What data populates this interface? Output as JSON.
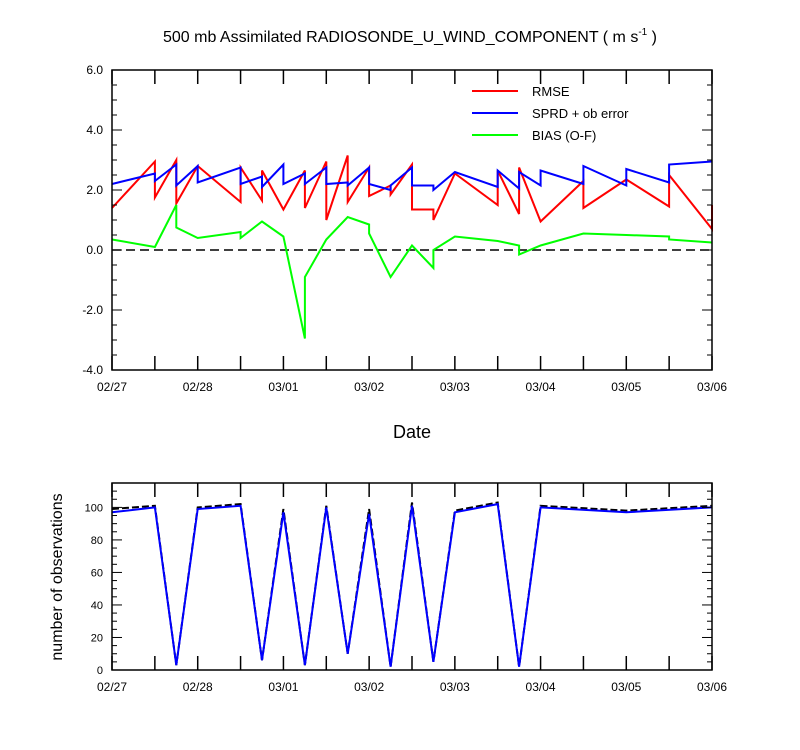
{
  "chart_data": [
    {
      "type": "line",
      "title": "500 mb Assimilated RADIOSONDE_U_WIND_COMPONENT ( m s",
      "title_sup": "-1",
      "title_end": " )",
      "xlabel": "Date",
      "ylabel": "",
      "xlim": [
        0,
        7
      ],
      "ylim": [
        -4,
        6
      ],
      "x_ticks": [
        0,
        1,
        2,
        3,
        4,
        5,
        6,
        7
      ],
      "x_tick_labels": [
        "02/27",
        "02/28",
        "03/01",
        "03/02",
        "03/03",
        "03/04",
        "03/05",
        "03/06"
      ],
      "y_ticks": [
        -4,
        -2,
        0,
        2,
        4,
        6
      ],
      "y_tick_labels": [
        "-4.0",
        "-2.0",
        "0.0",
        "2.0",
        "4.0",
        "6.0"
      ],
      "grid": false,
      "legend_position": "top-right",
      "zero_line": {
        "y": 0,
        "style": "dashed",
        "color": "#000000"
      },
      "series": [
        {
          "name": "RMSE",
          "color": "#ff0000",
          "x": [
            0,
            0.5,
            0.5,
            0.75,
            0.75,
            1,
            1.5,
            1.5,
            1.75,
            1.75,
            2,
            2.25,
            2.25,
            2.5,
            2.5,
            2.75,
            2.75,
            3,
            3,
            3.25,
            3.25,
            3.5,
            3.5,
            3.75,
            3.75,
            4,
            4.5,
            4.5,
            4.75,
            4.75,
            5,
            5.5,
            5.5,
            6,
            6.5,
            6.5,
            7,
            7
          ],
          "y": [
            1.4,
            2.95,
            1.75,
            3.0,
            1.55,
            2.8,
            1.6,
            2.75,
            1.65,
            2.65,
            1.35,
            2.65,
            1.4,
            2.95,
            1.0,
            3.15,
            1.6,
            2.75,
            1.8,
            2.15,
            1.85,
            2.85,
            1.35,
            1.35,
            1.0,
            2.55,
            1.5,
            2.65,
            1.2,
            2.75,
            0.95,
            2.3,
            1.4,
            2.35,
            1.45,
            2.5,
            0.7,
            1.5
          ]
        },
        {
          "name": "SPRD + ob error",
          "color": "#0000ff",
          "x": [
            0,
            0.5,
            0.5,
            0.75,
            0.75,
            1,
            1,
            1.5,
            1.5,
            1.75,
            1.75,
            2,
            2,
            2.25,
            2.25,
            2.5,
            2.5,
            2.75,
            2.75,
            3,
            3,
            3.25,
            3.25,
            3.5,
            3.5,
            3.75,
            3.75,
            4,
            4.5,
            4.5,
            4.75,
            4.75,
            5,
            5,
            5.5,
            5.5,
            6,
            6,
            6.5,
            6.5,
            7
          ],
          "y": [
            2.2,
            2.55,
            2.3,
            2.85,
            2.15,
            2.8,
            2.25,
            2.75,
            2.2,
            2.45,
            2.1,
            2.85,
            2.2,
            2.55,
            2.2,
            2.75,
            2.2,
            2.25,
            2.15,
            2.75,
            2.2,
            2.0,
            2.15,
            2.75,
            2.15,
            2.15,
            2.0,
            2.6,
            2.1,
            2.65,
            2.05,
            2.6,
            2.15,
            2.65,
            2.2,
            2.8,
            2.15,
            2.7,
            2.25,
            2.85,
            2.95
          ]
        },
        {
          "name": "BIAS (O-F)",
          "color": "#00ff00",
          "x": [
            0,
            0.5,
            0.75,
            0.75,
            1,
            1.5,
            1.5,
            1.75,
            2,
            2.25,
            2.25,
            2.5,
            2.75,
            3,
            3,
            3.25,
            3.5,
            3.75,
            3.75,
            4,
            4.5,
            4.75,
            4.75,
            5,
            5.5,
            6,
            6.5,
            6.5,
            7
          ],
          "y": [
            0.35,
            0.1,
            1.5,
            0.75,
            0.4,
            0.6,
            0.4,
            0.95,
            0.45,
            -2.95,
            -0.9,
            0.35,
            1.1,
            0.85,
            0.55,
            -0.9,
            0.15,
            -0.6,
            0.0,
            0.45,
            0.3,
            0.15,
            -0.15,
            0.15,
            0.55,
            0.5,
            0.45,
            0.35,
            0.25
          ]
        }
      ]
    },
    {
      "type": "line",
      "title": "",
      "xlabel": "",
      "ylabel": "number of observations",
      "xlim": [
        0,
        7
      ],
      "ylim": [
        0,
        115
      ],
      "x_ticks": [
        0,
        1,
        2,
        3,
        4,
        5,
        6,
        7
      ],
      "x_tick_labels": [
        "02/27",
        "02/28",
        "03/01",
        "03/02",
        "03/03",
        "03/04",
        "03/05",
        "03/06"
      ],
      "y_ticks": [
        0,
        20,
        40,
        60,
        80,
        100
      ],
      "y_tick_labels": [
        "0",
        "20",
        "40",
        "60",
        "80",
        "100"
      ],
      "grid": false,
      "series": [
        {
          "style": "dashed",
          "color": "#000000",
          "x": [
            0,
            0.5,
            0.75,
            1,
            1.5,
            1.75,
            2,
            2.25,
            2.5,
            2.75,
            3,
            3.25,
            3.5,
            3.75,
            4,
            4.5,
            4.75,
            5,
            6,
            7
          ],
          "y": [
            99,
            101,
            3,
            100,
            102,
            6,
            99,
            3,
            101,
            10,
            99,
            2,
            103,
            5,
            98,
            103,
            2,
            101,
            98,
            101
          ]
        },
        {
          "style": "solid",
          "color": "#0000ff",
          "x": [
            0,
            0.5,
            0.75,
            1,
            1.5,
            1.75,
            2,
            2.25,
            2.5,
            2.75,
            3,
            3.25,
            3.5,
            3.75,
            4,
            4.5,
            4.75,
            5,
            6,
            7
          ],
          "y": [
            97,
            100,
            3,
            99,
            101,
            6,
            97,
            3,
            100,
            10,
            96,
            2,
            101,
            5,
            97,
            102,
            2,
            100,
            97,
            100
          ]
        }
      ]
    }
  ]
}
